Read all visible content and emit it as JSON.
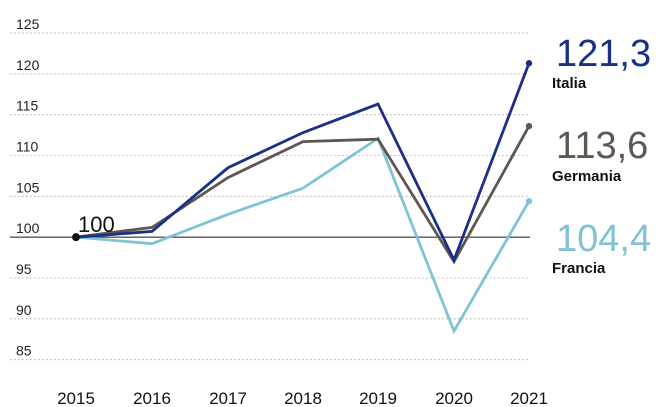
{
  "chart_data": {
    "type": "line",
    "title": "",
    "xlabel": "",
    "ylabel": "",
    "x": [
      2015,
      2016,
      2017,
      2018,
      2019,
      2020,
      2021
    ],
    "x_labels": [
      "2015",
      "2016",
      "2017",
      "2018",
      "2019",
      "2020",
      "2021"
    ],
    "ylim": [
      83,
      125
    ],
    "y_ticks": [
      85,
      90,
      95,
      100,
      105,
      110,
      115,
      120,
      125
    ],
    "y_tick_labels": [
      "85",
      "90",
      "95",
      "100",
      "105",
      "110",
      "115",
      "120",
      "125"
    ],
    "grid": true,
    "baseline_value": 100,
    "start_label": "100",
    "series": [
      {
        "name": "Italia",
        "end_label": "121,3",
        "color": "#1b2f86",
        "values": [
          100,
          100.7,
          108.5,
          112.8,
          116.3,
          97.2,
          121.3
        ]
      },
      {
        "name": "Germania",
        "end_label": "113,6",
        "color": "#5e5651",
        "values": [
          100,
          101.2,
          107.3,
          111.7,
          112.0,
          97.0,
          113.6
        ]
      },
      {
        "name": "Francia",
        "end_label": "104,4",
        "color": "#7fc3d6",
        "values": [
          100,
          99.2,
          102.8,
          106.0,
          112.1,
          88.5,
          104.4
        ]
      }
    ]
  }
}
